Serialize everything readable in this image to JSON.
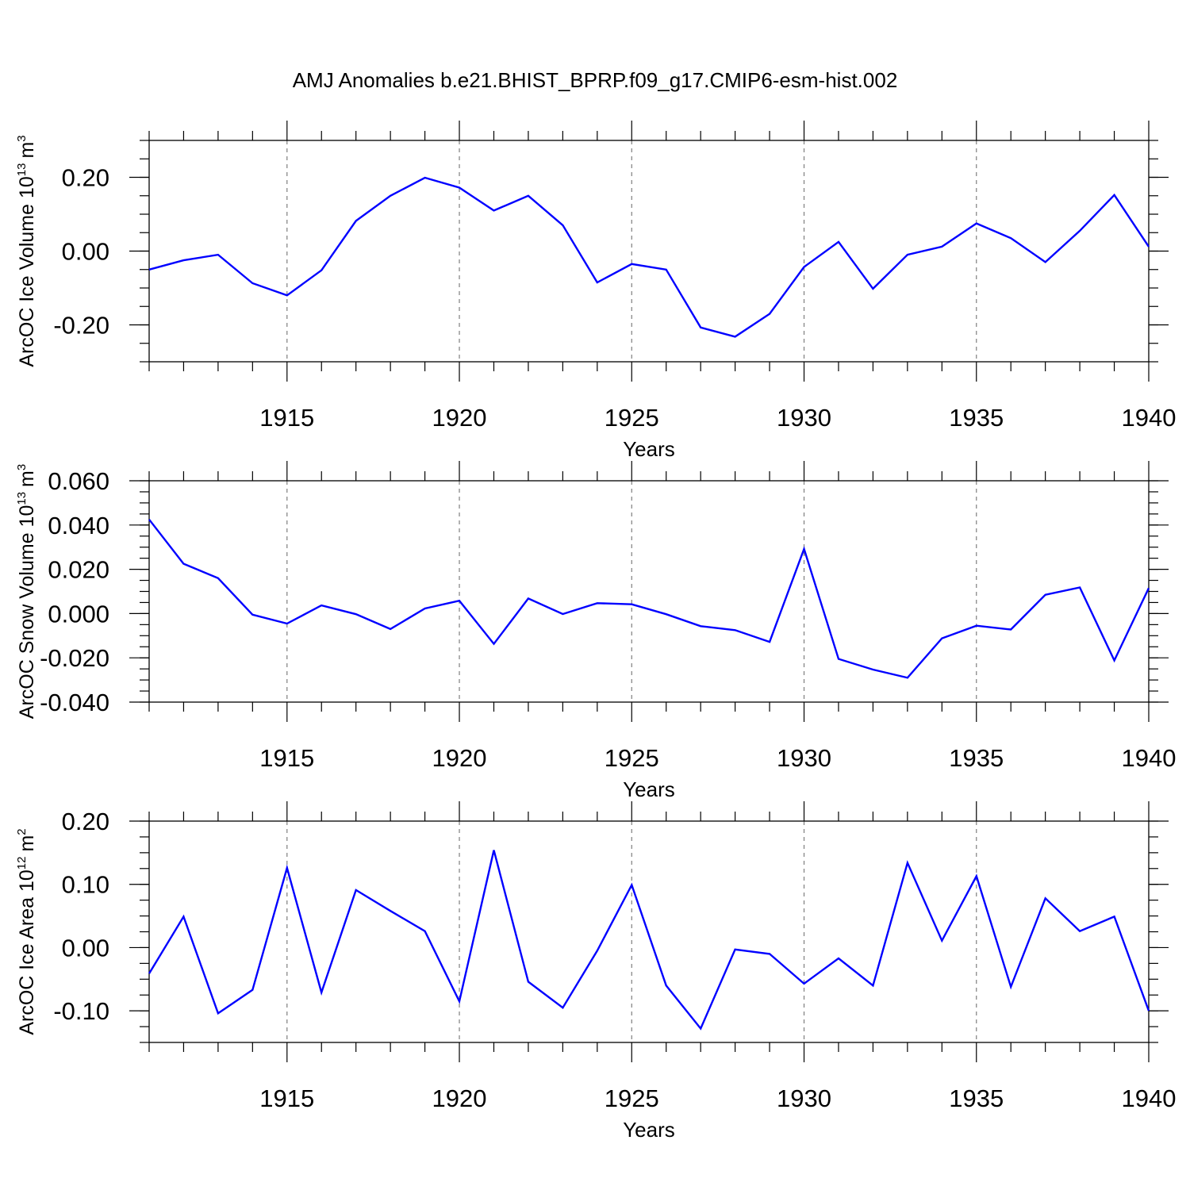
{
  "title": "AMJ Anomalies b.e21.BHIST_BPRP.f09_g17.CMIP6-esm-hist.002",
  "colors": {
    "line": "#0000ff",
    "axis": "#000000",
    "grid": "#7f7f7f"
  },
  "chart_data": [
    {
      "type": "line",
      "title": "AMJ Anomalies b.e21.BHIST_BPRP.f09_g17.CMIP6-esm-hist.002",
      "xlabel": "Years",
      "ylabel": "ArcOC Ice Volume 10",
      "ylabel_sup": "13",
      "ylabel_unit": "m",
      "ylabel_unit_sup": "3",
      "xlim": [
        1911,
        1940
      ],
      "ylim": [
        -0.3,
        0.3
      ],
      "xticks": [
        "1915",
        "1920",
        "1925",
        "1930",
        "1935",
        "1940"
      ],
      "yticks": [
        "-0.20",
        "0.00",
        "0.20"
      ],
      "grid": "vertical dashed at major x ticks",
      "x": [
        1911,
        1912,
        1913,
        1914,
        1915,
        1916,
        1917,
        1918,
        1919,
        1920,
        1921,
        1922,
        1923,
        1924,
        1925,
        1926,
        1927,
        1928,
        1929,
        1930,
        1931,
        1932,
        1933,
        1934,
        1935,
        1936,
        1937,
        1938,
        1939,
        1940
      ],
      "values": [
        -0.05,
        -0.025,
        -0.01,
        -0.087,
        -0.12,
        -0.052,
        0.082,
        0.15,
        0.199,
        0.172,
        0.11,
        0.15,
        0.07,
        -0.085,
        -0.035,
        -0.05,
        -0.207,
        -0.232,
        -0.17,
        -0.043,
        0.025,
        -0.102,
        -0.01,
        0.012,
        0.075,
        0.035,
        -0.03,
        0.055,
        0.152,
        0.012
      ]
    },
    {
      "type": "line",
      "xlabel": "Years",
      "ylabel": "ArcOC Snow Volume 10",
      "ylabel_sup": "13",
      "ylabel_unit": "m",
      "ylabel_unit_sup": "3",
      "xlim": [
        1911,
        1940
      ],
      "ylim": [
        -0.04,
        0.06
      ],
      "xticks": [
        "1915",
        "1920",
        "1925",
        "1930",
        "1935",
        "1940"
      ],
      "yticks": [
        "-0.040",
        "-0.020",
        "0.000",
        "0.020",
        "0.040",
        "0.060"
      ],
      "grid": "vertical dashed at major x ticks",
      "x": [
        1911,
        1912,
        1913,
        1914,
        1915,
        1916,
        1917,
        1918,
        1919,
        1920,
        1921,
        1922,
        1923,
        1924,
        1925,
        1926,
        1927,
        1928,
        1929,
        1930,
        1931,
        1932,
        1933,
        1934,
        1935,
        1936,
        1937,
        1938,
        1939,
        1940
      ],
      "values": [
        0.0425,
        0.0225,
        0.016,
        -0.0005,
        -0.0045,
        0.0037,
        -0.0003,
        -0.007,
        0.0023,
        0.0058,
        -0.0137,
        0.0068,
        -0.0002,
        0.0047,
        0.0042,
        -0.0003,
        -0.0057,
        -0.0075,
        -0.0128,
        0.0292,
        -0.0205,
        -0.0253,
        -0.029,
        -0.0112,
        -0.0055,
        -0.0072,
        0.0085,
        0.0118,
        -0.0212,
        0.0115
      ]
    },
    {
      "type": "line",
      "xlabel": "Years",
      "ylabel": "ArcOC Ice Area 10",
      "ylabel_sup": "12",
      "ylabel_unit": "m",
      "ylabel_unit_sup": "2",
      "xlim": [
        1911,
        1940
      ],
      "ylim": [
        -0.15,
        0.2
      ],
      "xticks": [
        "1915",
        "1920",
        "1925",
        "1930",
        "1935",
        "1940"
      ],
      "yticks": [
        "-0.10",
        "0.00",
        "0.10",
        "0.20"
      ],
      "grid": "vertical dashed at major x ticks",
      "x": [
        1911,
        1912,
        1913,
        1914,
        1915,
        1916,
        1917,
        1918,
        1919,
        1920,
        1921,
        1922,
        1923,
        1924,
        1925,
        1926,
        1927,
        1928,
        1929,
        1930,
        1931,
        1932,
        1933,
        1934,
        1935,
        1936,
        1937,
        1938,
        1939,
        1940
      ],
      "values": [
        -0.041,
        0.049,
        -0.104,
        -0.067,
        0.126,
        -0.071,
        0.091,
        0.058,
        0.026,
        -0.085,
        0.154,
        -0.054,
        -0.095,
        -0.005,
        0.099,
        -0.06,
        -0.128,
        -0.003,
        -0.01,
        -0.057,
        -0.017,
        -0.06,
        0.134,
        0.011,
        0.113,
        -0.062,
        0.078,
        0.026,
        0.049,
        -0.1
      ]
    }
  ]
}
